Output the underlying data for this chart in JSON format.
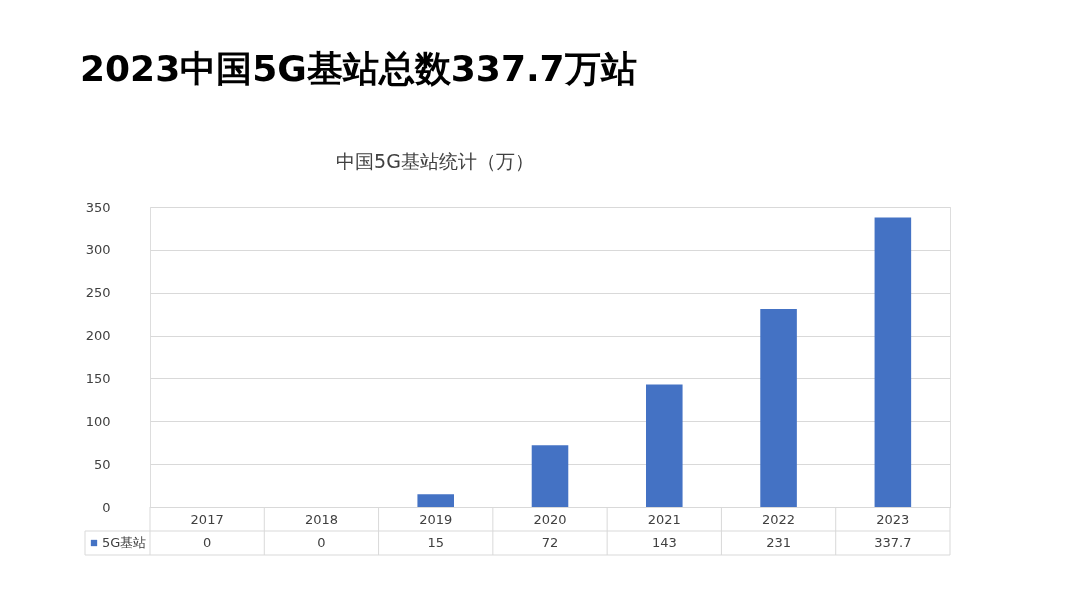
{
  "chart_data": {
    "type": "bar",
    "title": "2023中国5G基站总数337.7万站",
    "subtitle": "中国5G基站统计（万）",
    "categories": [
      "2017",
      "2018",
      "2019",
      "2020",
      "2021",
      "2022",
      "2023"
    ],
    "series": [
      {
        "name": "5G基站",
        "color": "#4472c4",
        "values": [
          0,
          0,
          15,
          72,
          143,
          231,
          337.7
        ]
      }
    ],
    "ylim": [
      0,
      350
    ],
    "yticks": [
      0,
      50,
      100,
      150,
      200,
      250,
      300,
      350
    ],
    "grid": "y",
    "data_labels": true,
    "legend": "bottom left"
  }
}
